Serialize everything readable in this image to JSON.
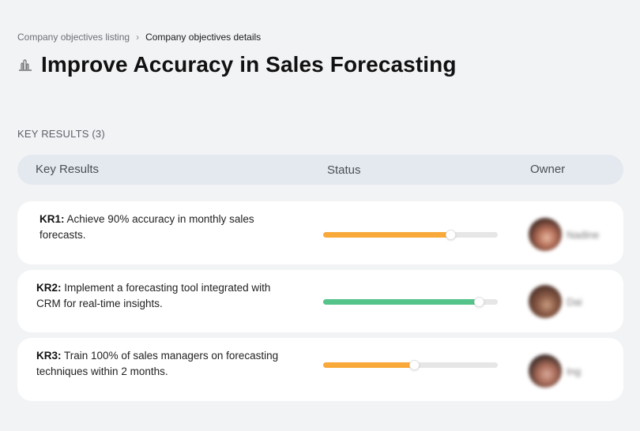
{
  "breadcrumb": {
    "parent": "Company objectives listing",
    "separator": "›",
    "current": "Company objectives details"
  },
  "objective": {
    "icon": "bar-chart-icon",
    "title": "Improve Accuracy in Sales Forecasting"
  },
  "key_results_section": {
    "label": "KEY RESULTS (3)",
    "columns": [
      "Key Results",
      "Status",
      "Owner"
    ]
  },
  "key_results": [
    {
      "id": "KR1:",
      "text": "Achieve 90% accuracy in monthly sales forecasts.",
      "progress_percent": 73,
      "status_color": "#f8a93a",
      "owner": {
        "name": "Nadine",
        "avatar_colors": [
          "#3a2520",
          "#b06b55",
          "#e8b8a0"
        ]
      }
    },
    {
      "id": "KR2:",
      "text": "Implement a forecasting tool integrated with CRM for real-time insights.",
      "progress_percent": 89,
      "status_color": "#55c48a",
      "owner": {
        "name": "Dai",
        "avatar_colors": [
          "#4a3028",
          "#8a5a45",
          "#c89c80"
        ]
      }
    },
    {
      "id": "KR3:",
      "text": "Train 100% of sales managers on forecasting techniques within 2 months.",
      "progress_percent": 52,
      "status_color": "#f8a93a",
      "owner": {
        "name": "Ing",
        "avatar_colors": [
          "#2e2422",
          "#a86a58",
          "#d8a898"
        ]
      }
    }
  ]
}
